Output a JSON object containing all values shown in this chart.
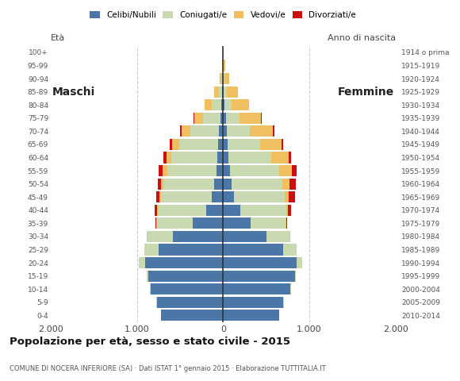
{
  "age_groups": [
    "0-4",
    "5-9",
    "10-14",
    "15-19",
    "20-24",
    "25-29",
    "30-34",
    "35-39",
    "40-44",
    "45-49",
    "50-54",
    "55-59",
    "60-64",
    "65-69",
    "70-74",
    "75-79",
    "80-84",
    "85-89",
    "90-94",
    "95-99",
    "100+"
  ],
  "birth_years": [
    "2010-2014",
    "2005-2009",
    "2000-2004",
    "1995-1999",
    "1990-1994",
    "1985-1989",
    "1980-1984",
    "1975-1979",
    "1970-1974",
    "1965-1969",
    "1960-1964",
    "1955-1959",
    "1950-1954",
    "1945-1949",
    "1940-1944",
    "1935-1939",
    "1930-1934",
    "1925-1929",
    "1920-1924",
    "1915-1919",
    "1914 o prima"
  ],
  "colors": {
    "celibe": "#4a76a8",
    "coniugato": "#c8d9b0",
    "vedovo": "#f0c060",
    "divorziato": "#cc1010"
  },
  "males": {
    "celibe": [
      720,
      770,
      840,
      870,
      900,
      750,
      580,
      350,
      200,
      130,
      100,
      80,
      70,
      60,
      50,
      30,
      20,
      10,
      5,
      0,
      0
    ],
    "coniugato": [
      0,
      2,
      5,
      20,
      80,
      160,
      300,
      420,
      560,
      590,
      590,
      570,
      530,
      450,
      330,
      200,
      110,
      40,
      15,
      5,
      0
    ],
    "vedovo": [
      0,
      0,
      0,
      0,
      0,
      1,
      2,
      5,
      10,
      20,
      30,
      50,
      60,
      80,
      100,
      100,
      80,
      50,
      20,
      8,
      2
    ],
    "divorziato": [
      0,
      0,
      0,
      0,
      0,
      2,
      5,
      10,
      25,
      35,
      35,
      45,
      35,
      30,
      20,
      10,
      5,
      0,
      0,
      0,
      0
    ]
  },
  "females": {
    "celibe": [
      650,
      700,
      780,
      830,
      850,
      700,
      500,
      320,
      200,
      130,
      100,
      80,
      60,
      50,
      40,
      30,
      20,
      10,
      5,
      0,
      0
    ],
    "coniugato": [
      0,
      2,
      5,
      15,
      70,
      150,
      270,
      400,
      530,
      580,
      590,
      570,
      500,
      380,
      270,
      160,
      80,
      30,
      10,
      5,
      0
    ],
    "vedovo": [
      0,
      0,
      0,
      0,
      1,
      2,
      5,
      10,
      20,
      50,
      80,
      150,
      200,
      250,
      270,
      250,
      200,
      130,
      60,
      20,
      3
    ],
    "divorziato": [
      0,
      0,
      0,
      0,
      0,
      2,
      5,
      15,
      40,
      70,
      70,
      50,
      25,
      20,
      15,
      10,
      5,
      2,
      0,
      0,
      0
    ]
  },
  "xlim": 2000,
  "title": "Popolazione per età, sesso e stato civile - 2015",
  "subtitle": "COMUNE DI NOCERA INFERIORE (SA) · Dati ISTAT 1° gennaio 2015 · Elaborazione TUTTITALIA.IT",
  "xlabel_left": "Maschi",
  "xlabel_right": "Femmine",
  "ylabel_left": "Età",
  "ylabel_right": "Anno di nascita",
  "legend_labels": [
    "Celibi/Nubili",
    "Coniugati/e",
    "Vedovi/e",
    "Divorziati/e"
  ],
  "background_color": "#ffffff",
  "bar_height": 0.85
}
